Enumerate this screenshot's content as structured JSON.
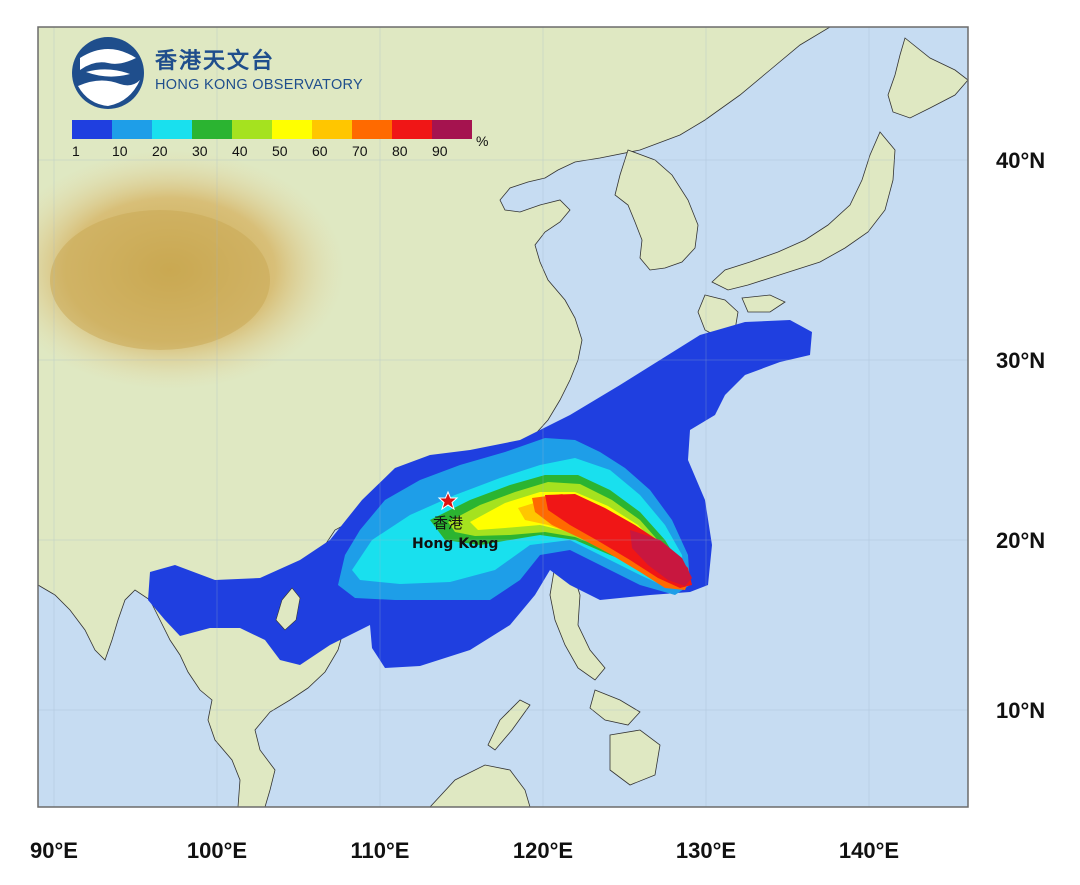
{
  "organization": {
    "name_zh": "香港天文台",
    "name_en": "HONG KONG OBSERVATORY",
    "logo_icon": "hko-logo-icon"
  },
  "legend": {
    "unit": "%",
    "bins": [
      {
        "label": "1",
        "color": "#1f3fe0"
      },
      {
        "label": "10",
        "color": "#1e9ee8"
      },
      {
        "label": "20",
        "color": "#19e0ee"
      },
      {
        "label": "30",
        "color": "#2bb431"
      },
      {
        "label": "40",
        "color": "#a5e21f"
      },
      {
        "label": "50",
        "color": "#ffff00"
      },
      {
        "label": "60",
        "color": "#ffc600"
      },
      {
        "label": "70",
        "color": "#ff6a00"
      },
      {
        "label": "80",
        "color": "#f01616"
      },
      {
        "label": "90",
        "color": "#a5134f"
      }
    ]
  },
  "marker": {
    "name_zh": "香港",
    "name_en": "Hong Kong",
    "lon": 114.17,
    "lat": 22.3
  },
  "axes": {
    "longitude_labels": [
      {
        "lon": 90,
        "label": "90°E"
      },
      {
        "lon": 100,
        "label": "100°E"
      },
      {
        "lon": 110,
        "label": "110°E"
      },
      {
        "lon": 120,
        "label": "120°E"
      },
      {
        "lon": 130,
        "label": "130°E"
      },
      {
        "lon": 140,
        "label": "140°E"
      }
    ],
    "latitude_labels": [
      {
        "lat": 40,
        "label": "40°N"
      },
      {
        "lat": 30,
        "label": "30°N"
      },
      {
        "lat": 20,
        "label": "20°N"
      },
      {
        "lat": 10,
        "label": "10°N"
      }
    ],
    "lon_range": [
      89,
      146
    ],
    "lat_range": [
      5,
      45
    ]
  },
  "colors": {
    "ocean": "#c6dcf2",
    "land": "#dfe8c2",
    "highland": "#d3b664",
    "frame": "#6b6b6b"
  }
}
